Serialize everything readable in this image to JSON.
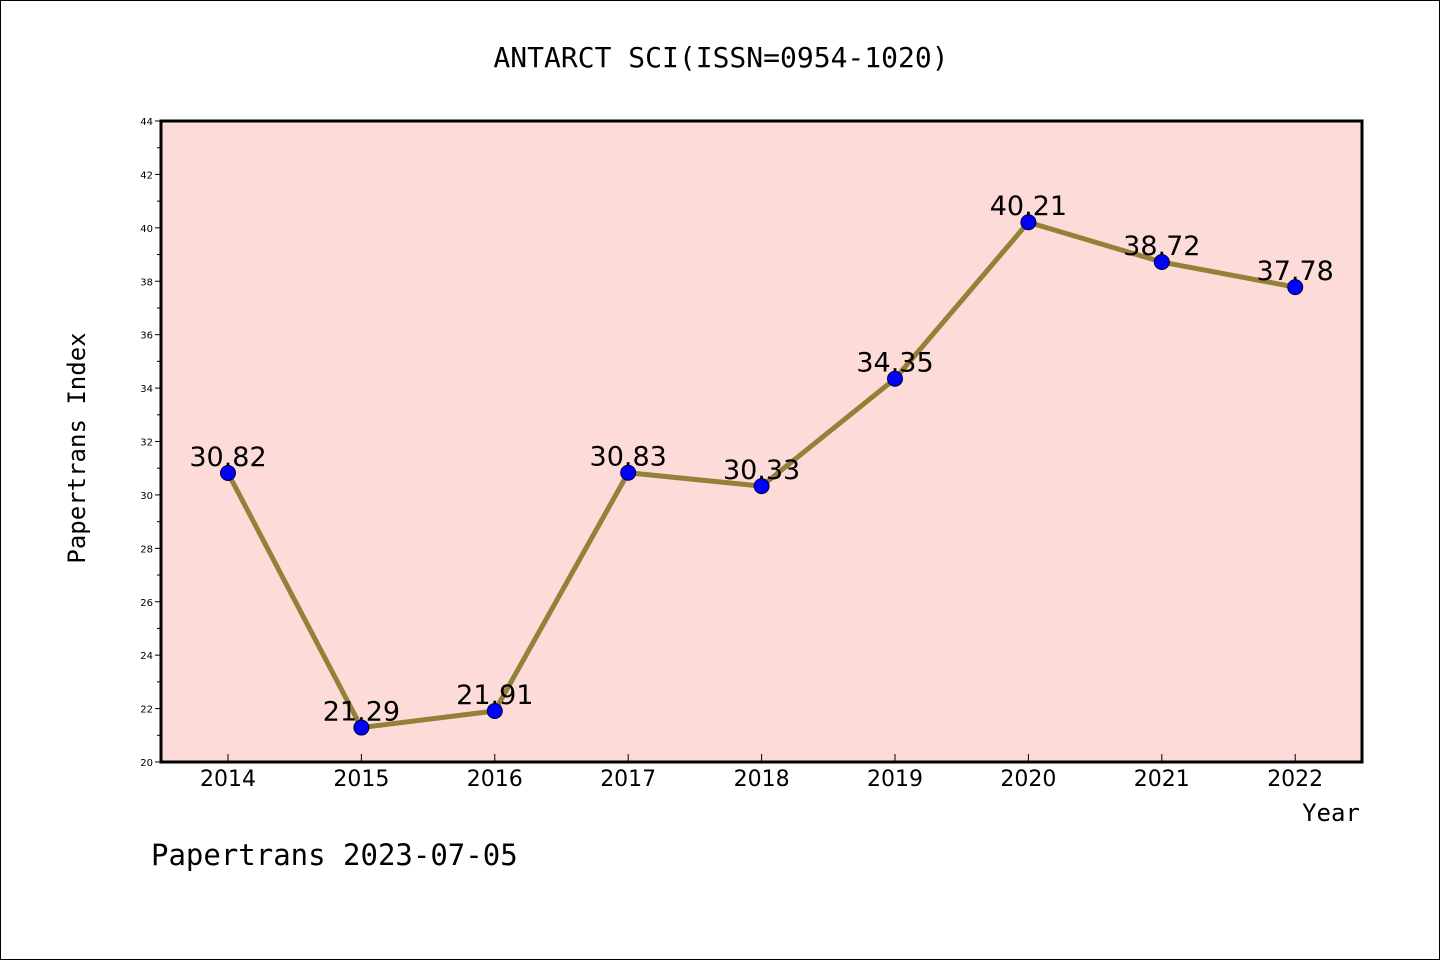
{
  "chart_data": {
    "type": "line",
    "title": "ANTARCT SCI(ISSN=0954-1020)",
    "xlabel": "Year",
    "ylabel": "Papertrans Index",
    "footer": "Papertrans 2023-07-05",
    "categories": [
      "2014",
      "2015",
      "2016",
      "2017",
      "2018",
      "2019",
      "2020",
      "2021",
      "2022"
    ],
    "values": [
      30.82,
      21.29,
      21.91,
      30.83,
      30.33,
      34.35,
      40.21,
      38.72,
      37.78
    ],
    "value_labels": [
      "30.82",
      "21.29",
      "21.91",
      "30.83",
      "30.33",
      "34.35",
      "40.21",
      "38.72",
      "37.78"
    ],
    "ylim": [
      20,
      44
    ],
    "yticks": [
      "20",
      "22",
      "24",
      "26",
      "28",
      "30",
      "32",
      "34",
      "36",
      "38",
      "40",
      "42",
      "44"
    ],
    "grid": false,
    "colors": {
      "plot_background": "#fddbd8",
      "line": "#948139",
      "marker": "#0000ff",
      "axes": "#000000"
    }
  }
}
